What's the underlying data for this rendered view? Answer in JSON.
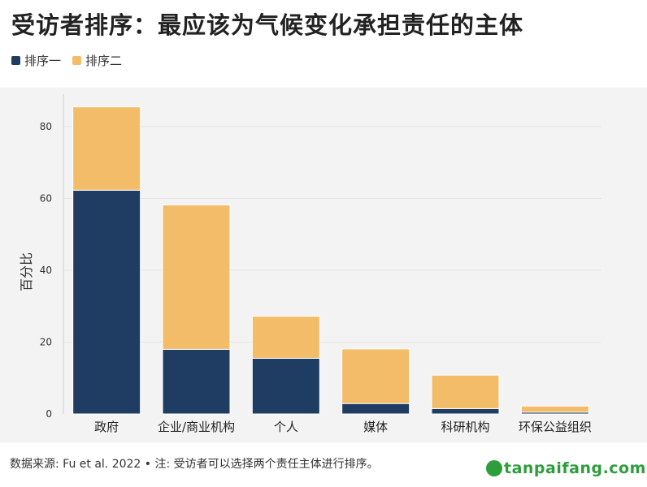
{
  "title": "受访者排序：最应该为气候变化承担责任的主体",
  "legend": {
    "items": [
      {
        "label": "排序一",
        "color": "#1f3d63"
      },
      {
        "label": "排序二",
        "color": "#f2bc68"
      }
    ]
  },
  "source_note": "数据来源: Fu et al. 2022 • 注: 受访者可以选择两个责任主体进行排序。",
  "watermark": "tanpaifang.com",
  "chart_data": {
    "type": "bar",
    "stacked": true,
    "categories": [
      "政府",
      "企业/商业机构",
      "个人",
      "媒体",
      "科研机构",
      "环保公益组织"
    ],
    "series": [
      {
        "name": "排序一",
        "color": "#1f3d63",
        "values": [
          62.3,
          18.0,
          15.5,
          2.9,
          1.5,
          0.5
        ]
      },
      {
        "name": "排序二",
        "color": "#f2bc68",
        "values": [
          23.2,
          40.2,
          11.7,
          15.2,
          9.3,
          1.7
        ]
      }
    ],
    "ylabel": "百分比",
    "ylim": [
      0,
      90
    ],
    "yticks": [
      0,
      20,
      40,
      60,
      80
    ],
    "grid": true
  }
}
